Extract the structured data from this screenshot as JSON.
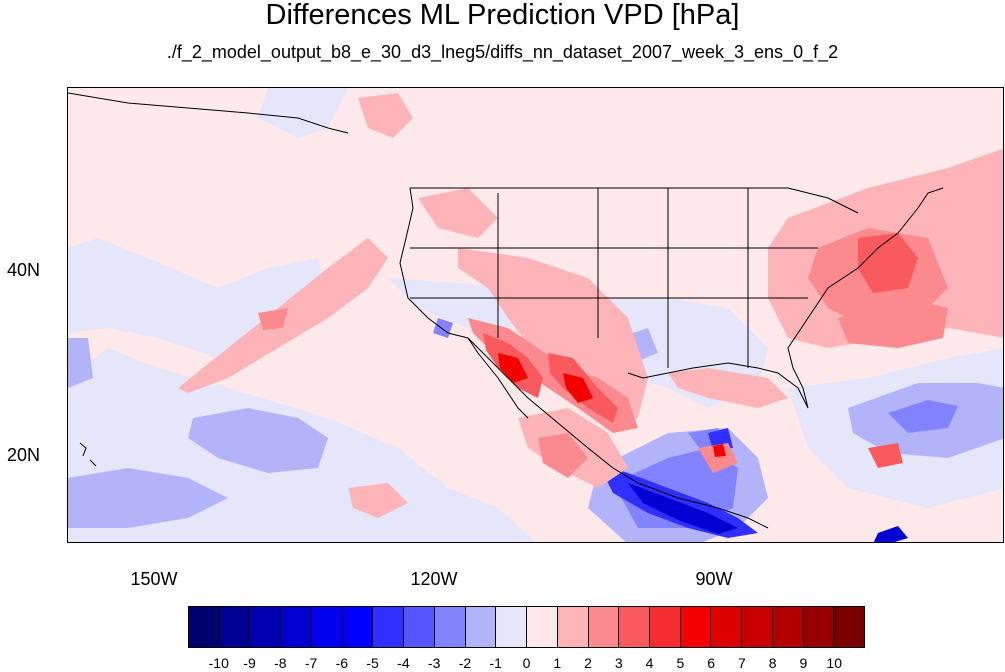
{
  "title": "Differences ML Prediction VPD [hPa]",
  "subtitle": "./f_2_model_output_b8_e_30_d3_lneg5/diffs_nn_dataset_2007_week_3_ens_0_f_2",
  "lat_labels": [
    "40N",
    "20N"
  ],
  "lon_labels": [
    "150W",
    "120W",
    "90W"
  ],
  "colorbar": {
    "labels": [
      "-10",
      "-9",
      "-8",
      "-7",
      "-6",
      "-5",
      "-4",
      "-3",
      "-2",
      "-1",
      "0",
      "1",
      "2",
      "3",
      "4",
      "5",
      "6",
      "7",
      "8",
      "9",
      "10"
    ],
    "colors": [
      "#00006e",
      "#000090",
      "#0000b0",
      "#0000d0",
      "#0000ee",
      "#0000ff",
      "#2f2fff",
      "#5656ff",
      "#8383ff",
      "#b3b3fa",
      "#e6e6fa",
      "#fde8ea",
      "#fcb4b8",
      "#fa8a8e",
      "#f85a5e",
      "#f52d30",
      "#f40000",
      "#de0000",
      "#c80000",
      "#b20000",
      "#960000",
      "#7a0000"
    ]
  },
  "colors": {
    "background": "#fde8ea",
    "light_blue": "#e6e6fa",
    "mid_blue": "#b3b3fa",
    "blue": "#8383ff",
    "strong_blue": "#2f2fff",
    "deep_blue": "#0000d0",
    "pink": "#fcb4b8",
    "salmon": "#fa8a8e",
    "red": "#f85a5e",
    "bright_red": "#f40000",
    "coastline": "#000000"
  }
}
